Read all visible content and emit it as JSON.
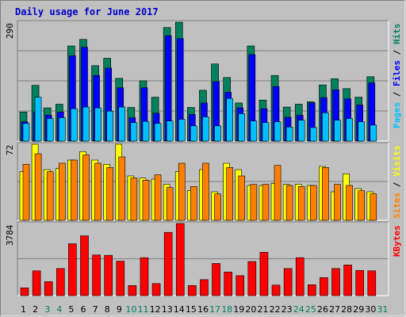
{
  "chart": {
    "title": "Daily usage for June 2017",
    "colors": {
      "hits": "#00805C",
      "files": "#0000FF",
      "pages": "#00C0FF",
      "visits": "#FFFF00",
      "sites": "#FF8000",
      "kbytes": "#FF0000",
      "weekend_label": "#00805C",
      "weekday_label": "#000000"
    }
  },
  "chart_data": [
    {
      "type": "bar",
      "panel": "hits-files-pages",
      "ymax_label": "290",
      "ymax": 290,
      "right_label": [
        {
          "text": "Pages",
          "color": "#00C0FF"
        },
        {
          "text": " / ",
          "color": "#000000"
        },
        {
          "text": "Files",
          "color": "#0000FF"
        },
        {
          "text": " / ",
          "color": "#000000"
        },
        {
          "text": "Hits",
          "color": "#00805C"
        }
      ],
      "categories": [
        "1",
        "2",
        "3",
        "4",
        "5",
        "6",
        "7",
        "8",
        "9",
        "10",
        "11",
        "12",
        "13",
        "14",
        "15",
        "16",
        "17",
        "18",
        "19",
        "20",
        "21",
        "22",
        "23",
        "24",
        "25",
        "26",
        "27",
        "28",
        "29",
        "30",
        "31"
      ],
      "series": [
        {
          "name": "Hits",
          "values": [
            71,
            136,
            81,
            90,
            232,
            248,
            184,
            202,
            153,
            82,
            147,
            107,
            277,
            290,
            82,
            124,
            188,
            155,
            93,
            232,
            100,
            160,
            83,
            90,
            96,
            137,
            152,
            128,
            107,
            157,
            0
          ]
        },
        {
          "name": "Files",
          "values": [
            47,
            71,
            63,
            71,
            208,
            229,
            160,
            178,
            130,
            57,
            130,
            68,
            257,
            250,
            65,
            93,
            145,
            119,
            81,
            211,
            79,
            133,
            58,
            63,
            93,
            106,
            125,
            103,
            88,
            142,
            0
          ]
        },
        {
          "name": "Pages",
          "values": [
            43,
            107,
            55,
            57,
            79,
            83,
            81,
            73,
            83,
            45,
            48,
            43,
            49,
            53,
            37,
            59,
            37,
            104,
            67,
            49,
            45,
            47,
            34,
            51,
            33,
            69,
            51,
            55,
            47,
            39,
            0
          ]
        }
      ]
    },
    {
      "type": "bar",
      "panel": "visits-sites",
      "ymax_label": "72",
      "ymax": 72,
      "right_label": [
        {
          "text": "Sites",
          "color": "#FF8000"
        },
        {
          "text": " / ",
          "color": "#000000"
        },
        {
          "text": "Visits",
          "color": "#FFFF00"
        }
      ],
      "categories": [
        "1",
        "2",
        "3",
        "4",
        "5",
        "6",
        "7",
        "8",
        "9",
        "10",
        "11",
        "12",
        "13",
        "14",
        "15",
        "16",
        "17",
        "18",
        "19",
        "20",
        "21",
        "22",
        "23",
        "24",
        "25",
        "26",
        "27",
        "28",
        "29",
        "30",
        "31"
      ],
      "series": [
        {
          "name": "Visits",
          "values": [
            46,
            72,
            48,
            49,
            57,
            65,
            57,
            53,
            72,
            42,
            40,
            39,
            34,
            46,
            28,
            48,
            27,
            54,
            48,
            33,
            33,
            35,
            34,
            34,
            33,
            51,
            27,
            44,
            30,
            27,
            0
          ]
        },
        {
          "name": "Sites",
          "values": [
            53,
            63,
            46,
            54,
            57,
            62,
            54,
            50,
            60,
            40,
            38,
            43,
            31,
            54,
            32,
            54,
            25,
            50,
            42,
            34,
            34,
            52,
            33,
            32,
            33,
            50,
            34,
            33,
            28,
            25,
            0
          ]
        }
      ]
    },
    {
      "type": "bar",
      "panel": "kbytes",
      "ymax_label": "3784",
      "ymax": 3784,
      "right_label": [
        {
          "text": "KBytes",
          "color": "#FF0000"
        }
      ],
      "categories": [
        "1",
        "2",
        "3",
        "4",
        "5",
        "6",
        "7",
        "8",
        "9",
        "10",
        "11",
        "12",
        "13",
        "14",
        "15",
        "16",
        "17",
        "18",
        "19",
        "20",
        "21",
        "22",
        "23",
        "24",
        "25",
        "26",
        "27",
        "28",
        "29",
        "30",
        "31"
      ],
      "series": [
        {
          "name": "KBytes",
          "values": [
            406,
            1299,
            731,
            1420,
            2719,
            3136,
            2131,
            2112,
            1807,
            528,
            1989,
            629,
            3317,
            3784,
            528,
            838,
            1685,
            1239,
            1050,
            1787,
            2273,
            550,
            1420,
            1989,
            570,
            945,
            1422,
            1606,
            1320,
            1300,
            0
          ]
        }
      ]
    }
  ]
}
